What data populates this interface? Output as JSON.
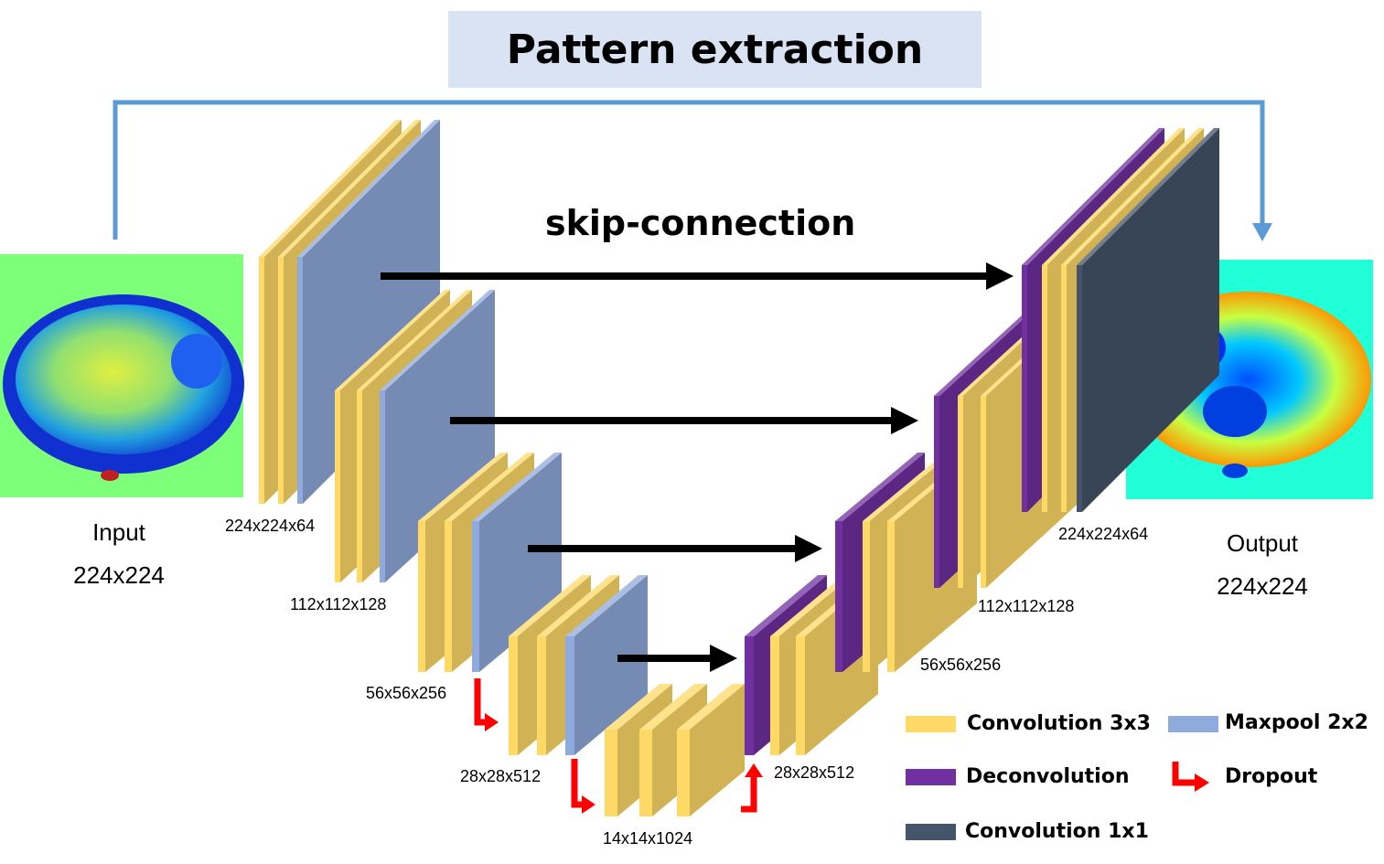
{
  "title": "Pattern extraction",
  "skip_label": "skip-connection",
  "input": {
    "name": "Input",
    "size": "224x224"
  },
  "output": {
    "name": "Output",
    "size": "224x224"
  },
  "encoder_dims": [
    "224x224x64",
    "112x112x128",
    "56x56x256",
    "28x28x512"
  ],
  "bottleneck_dim": "14x14x1024",
  "decoder_dims": [
    "28x28x512",
    "56x56x256",
    "112x112x128",
    "224x224x64"
  ],
  "legend": [
    {
      "label": "Convolution 3x3",
      "color": "#ffd966"
    },
    {
      "label": "Maxpool 2x2",
      "color": "#8faadc"
    },
    {
      "label": "Deconvolution",
      "color": "#7030a0"
    },
    {
      "label": "Dropout",
      "color": "#ff0000"
    },
    {
      "label": "Convolution 1x1",
      "color": "#44546a"
    }
  ],
  "colors": {
    "conv": "#ffd966",
    "maxpool": "#8faadc",
    "deconv": "#7030a0",
    "conv1x1": "#44546a",
    "dropout": "#ff0000",
    "skip_arrow": "#000000",
    "outer_connection": "#5b9bd5",
    "title_bg": "#dae3f3"
  }
}
